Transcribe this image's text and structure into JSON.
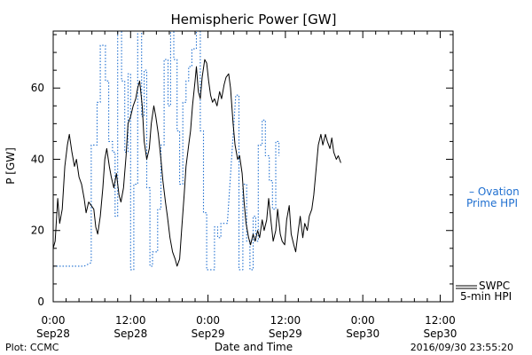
{
  "chart_data": {
    "type": "line",
    "title": "Hemispheric Power [GW]",
    "ylabel": "P [GW]",
    "xlabel": "Date and Time",
    "ylim": [
      0,
      76
    ],
    "yticks": [
      0,
      20,
      40,
      60
    ],
    "xlim_hours": [
      0,
      62
    ],
    "x_ticks": [
      {
        "hour": 0,
        "time": "0:00",
        "date": "Sep28"
      },
      {
        "hour": 12,
        "time": "12:00",
        "date": "Sep28"
      },
      {
        "hour": 24,
        "time": "0:00",
        "date": "Sep29"
      },
      {
        "hour": 36,
        "time": "12:00",
        "date": "Sep29"
      },
      {
        "hour": 48,
        "time": "0:00",
        "date": "Sep30"
      },
      {
        "hour": 60,
        "time": "12:00",
        "date": "Sep30"
      }
    ],
    "series": [
      {
        "name": "SWPC 5-min HPI",
        "label_lines": [
          "SWPC",
          "5-min HPI"
        ],
        "color": "#000000",
        "style": "solid",
        "points": [
          [
            0.0,
            15
          ],
          [
            0.3,
            17
          ],
          [
            0.7,
            29
          ],
          [
            1.0,
            22
          ],
          [
            1.4,
            26
          ],
          [
            1.8,
            38
          ],
          [
            2.2,
            44
          ],
          [
            2.5,
            47
          ],
          [
            2.9,
            42
          ],
          [
            3.3,
            38
          ],
          [
            3.6,
            40
          ],
          [
            4.0,
            35
          ],
          [
            4.4,
            33
          ],
          [
            4.8,
            29
          ],
          [
            5.1,
            25
          ],
          [
            5.5,
            28
          ],
          [
            5.9,
            27
          ],
          [
            6.3,
            26
          ],
          [
            6.6,
            21
          ],
          [
            6.9,
            19
          ],
          [
            7.3,
            24
          ],
          [
            7.7,
            32
          ],
          [
            8.0,
            40
          ],
          [
            8.3,
            43
          ],
          [
            8.7,
            38
          ],
          [
            9.0,
            35
          ],
          [
            9.4,
            32
          ],
          [
            9.8,
            36
          ],
          [
            10.2,
            30
          ],
          [
            10.5,
            28
          ],
          [
            10.9,
            32
          ],
          [
            11.3,
            41
          ],
          [
            11.6,
            50
          ],
          [
            12.0,
            52
          ],
          [
            12.4,
            55
          ],
          [
            12.8,
            57
          ],
          [
            13.1,
            60
          ],
          [
            13.4,
            62
          ],
          [
            13.8,
            55
          ],
          [
            14.1,
            45
          ],
          [
            14.5,
            40
          ],
          [
            14.9,
            43
          ],
          [
            15.2,
            50
          ],
          [
            15.6,
            55
          ],
          [
            15.9,
            52
          ],
          [
            16.3,
            47
          ],
          [
            16.7,
            40
          ],
          [
            17.0,
            34
          ],
          [
            17.4,
            28
          ],
          [
            17.7,
            24
          ],
          [
            18.1,
            18
          ],
          [
            18.5,
            14
          ],
          [
            18.9,
            12
          ],
          [
            19.2,
            10
          ],
          [
            19.6,
            12
          ],
          [
            19.9,
            20
          ],
          [
            20.3,
            30
          ],
          [
            20.6,
            38
          ],
          [
            21.0,
            44
          ],
          [
            21.3,
            48
          ],
          [
            21.6,
            55
          ],
          [
            22.0,
            62
          ],
          [
            22.2,
            66
          ],
          [
            22.5,
            59
          ],
          [
            22.8,
            57
          ],
          [
            23.1,
            63
          ],
          [
            23.5,
            68
          ],
          [
            23.8,
            67
          ],
          [
            24.1,
            62
          ],
          [
            24.4,
            58
          ],
          [
            24.7,
            56
          ],
          [
            25.0,
            57
          ],
          [
            25.4,
            55
          ],
          [
            25.8,
            59
          ],
          [
            26.1,
            57
          ],
          [
            26.5,
            61
          ],
          [
            26.8,
            63
          ],
          [
            27.2,
            64
          ],
          [
            27.5,
            60
          ],
          [
            27.9,
            50
          ],
          [
            28.2,
            44
          ],
          [
            28.6,
            40
          ],
          [
            28.9,
            41
          ],
          [
            29.3,
            36
          ],
          [
            29.6,
            28
          ],
          [
            29.9,
            22
          ],
          [
            30.3,
            18
          ],
          [
            30.6,
            16
          ],
          [
            31.0,
            19
          ],
          [
            31.3,
            17
          ],
          [
            31.7,
            20
          ],
          [
            32.0,
            18
          ],
          [
            32.4,
            23
          ],
          [
            32.7,
            20
          ],
          [
            33.1,
            23
          ],
          [
            33.4,
            29
          ],
          [
            33.8,
            22
          ],
          [
            34.1,
            17
          ],
          [
            34.5,
            20
          ],
          [
            34.8,
            26
          ],
          [
            35.2,
            19
          ],
          [
            35.5,
            17
          ],
          [
            35.9,
            16
          ],
          [
            36.2,
            23
          ],
          [
            36.6,
            27
          ],
          [
            36.9,
            19
          ],
          [
            37.3,
            16
          ],
          [
            37.6,
            14
          ],
          [
            38.0,
            20
          ],
          [
            38.3,
            24
          ],
          [
            38.7,
            18
          ],
          [
            39.0,
            22
          ],
          [
            39.4,
            20
          ],
          [
            39.7,
            24
          ],
          [
            40.1,
            26
          ],
          [
            40.4,
            30
          ],
          [
            40.8,
            38
          ],
          [
            41.1,
            44
          ],
          [
            41.5,
            47
          ],
          [
            41.8,
            44
          ],
          [
            42.2,
            47
          ],
          [
            42.5,
            45
          ],
          [
            42.9,
            43
          ],
          [
            43.2,
            46
          ],
          [
            43.5,
            42
          ],
          [
            43.9,
            40
          ],
          [
            44.2,
            41
          ],
          [
            44.6,
            39
          ]
        ]
      },
      {
        "name": "Ovation Prime HPI",
        "label_lines": [
          "– Ovation",
          "Prime HPI"
        ],
        "color": "#1f6fd0",
        "style": "dotted",
        "points": [
          [
            0.0,
            10
          ],
          [
            4.8,
            10
          ],
          [
            5.9,
            11
          ],
          [
            5.9,
            44
          ],
          [
            6.8,
            44
          ],
          [
            6.8,
            56
          ],
          [
            7.3,
            56
          ],
          [
            7.3,
            72
          ],
          [
            8.1,
            72
          ],
          [
            8.1,
            62
          ],
          [
            8.6,
            62
          ],
          [
            8.6,
            45
          ],
          [
            9.2,
            45
          ],
          [
            9.2,
            42
          ],
          [
            9.6,
            42
          ],
          [
            9.6,
            24
          ],
          [
            10.0,
            24
          ],
          [
            10.0,
            76
          ],
          [
            10.6,
            76
          ],
          [
            10.6,
            62
          ],
          [
            11.1,
            62
          ],
          [
            11.1,
            42
          ],
          [
            11.6,
            42
          ],
          [
            11.6,
            64
          ],
          [
            12.0,
            64
          ],
          [
            12.0,
            9
          ],
          [
            12.5,
            9
          ],
          [
            12.5,
            33
          ],
          [
            13.1,
            33
          ],
          [
            13.1,
            76
          ],
          [
            13.7,
            76
          ],
          [
            13.7,
            52
          ],
          [
            14.1,
            52
          ],
          [
            14.1,
            65
          ],
          [
            14.5,
            65
          ],
          [
            14.5,
            32
          ],
          [
            15.0,
            32
          ],
          [
            15.0,
            10
          ],
          [
            15.4,
            10
          ],
          [
            15.4,
            14
          ],
          [
            16.2,
            14
          ],
          [
            16.2,
            26
          ],
          [
            16.7,
            26
          ],
          [
            16.7,
            44
          ],
          [
            17.2,
            44
          ],
          [
            17.2,
            68
          ],
          [
            17.8,
            68
          ],
          [
            17.8,
            55
          ],
          [
            18.2,
            55
          ],
          [
            18.2,
            76
          ],
          [
            18.7,
            76
          ],
          [
            18.7,
            68
          ],
          [
            19.2,
            68
          ],
          [
            19.2,
            48
          ],
          [
            19.6,
            48
          ],
          [
            19.6,
            33
          ],
          [
            20.1,
            33
          ],
          [
            20.1,
            56
          ],
          [
            20.6,
            56
          ],
          [
            20.6,
            62
          ],
          [
            21.0,
            62
          ],
          [
            21.0,
            66
          ],
          [
            21.5,
            66
          ],
          [
            21.5,
            71
          ],
          [
            22.2,
            71
          ],
          [
            22.2,
            76
          ],
          [
            22.8,
            76
          ],
          [
            22.8,
            48
          ],
          [
            23.3,
            48
          ],
          [
            23.3,
            25
          ],
          [
            23.8,
            25
          ],
          [
            23.8,
            9
          ],
          [
            25.0,
            9
          ],
          [
            25.0,
            21
          ],
          [
            25.5,
            21
          ],
          [
            25.5,
            18
          ],
          [
            26.0,
            18
          ],
          [
            26.0,
            22
          ],
          [
            27.0,
            22
          ],
          [
            28.3,
            58
          ],
          [
            28.8,
            58
          ],
          [
            28.8,
            9
          ],
          [
            29.4,
            9
          ],
          [
            29.4,
            33
          ],
          [
            30.0,
            33
          ],
          [
            30.0,
            17
          ],
          [
            30.5,
            17
          ],
          [
            30.5,
            9
          ],
          [
            31.0,
            9
          ],
          [
            31.0,
            24
          ],
          [
            31.4,
            24
          ],
          [
            31.4,
            17
          ],
          [
            31.8,
            17
          ],
          [
            31.8,
            44
          ],
          [
            32.4,
            44
          ],
          [
            32.4,
            51
          ],
          [
            32.9,
            51
          ],
          [
            32.9,
            41
          ],
          [
            33.5,
            41
          ],
          [
            33.5,
            34
          ],
          [
            34.0,
            34
          ],
          [
            34.0,
            26
          ],
          [
            34.5,
            26
          ],
          [
            34.5,
            45
          ],
          [
            35.0,
            45
          ],
          [
            35.0,
            41
          ]
        ]
      }
    ]
  },
  "footer": {
    "plot_label": "Plot: CCMC",
    "timestamp": "2016/09/30 23:55:20"
  }
}
